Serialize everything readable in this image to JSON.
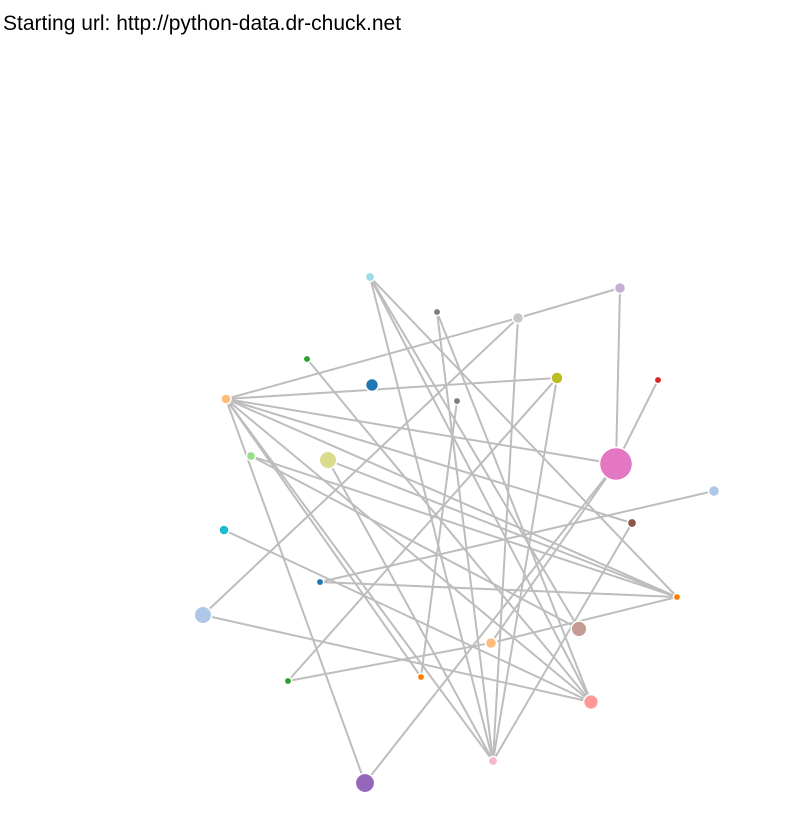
{
  "header": {
    "text": "Starting url: http://python-data.dr-chuck.net"
  },
  "graph": {
    "edge_color": "#bdbdbd",
    "node_stroke_color": "#ffffff",
    "nodes": [
      {
        "id": "n1",
        "color": "#9edae5",
        "size": 1
      },
      {
        "id": "n2",
        "color": "#c5b0d5",
        "size": 1.2
      },
      {
        "id": "n3",
        "color": "#c7c7c7",
        "size": 1.2
      },
      {
        "id": "n4",
        "color": "#7f7f7f",
        "size": 0.8
      },
      {
        "id": "n5",
        "color": "#2ca02c",
        "size": 0.8
      },
      {
        "id": "n6",
        "color": "#1f77b4",
        "size": 1.4
      },
      {
        "id": "n7",
        "color": "#bcbd22",
        "size": 1.3
      },
      {
        "id": "n8",
        "color": "#d62728",
        "size": 0.8
      },
      {
        "id": "n9",
        "color": "#7f7f7f",
        "size": 0.8
      },
      {
        "id": "n10",
        "color": "#ffbb78",
        "size": 1.1
      },
      {
        "id": "n11",
        "color": "#98df8a",
        "size": 1
      },
      {
        "id": "n12",
        "color": "#dbdb8d",
        "size": 1.9
      },
      {
        "id": "n13",
        "color": "#e377c2",
        "size": 3.6
      },
      {
        "id": "n14",
        "color": "#aec7e8",
        "size": 1.2
      },
      {
        "id": "n15",
        "color": "#8c564b",
        "size": 1
      },
      {
        "id": "n16",
        "color": "#17becf",
        "size": 1.1
      },
      {
        "id": "n17",
        "color": "#1f77b4",
        "size": 0.8
      },
      {
        "id": "n18",
        "color": "#ff7f0e",
        "size": 0.8
      },
      {
        "id": "n19",
        "color": "#aec7e8",
        "size": 1.9
      },
      {
        "id": "n20",
        "color": "#c49c94",
        "size": 1.7
      },
      {
        "id": "n21",
        "color": "#ffbb78",
        "size": 1.2
      },
      {
        "id": "n22",
        "color": "#2ca02c",
        "size": 0.8
      },
      {
        "id": "n23",
        "color": "#ff7f0e",
        "size": 0.8
      },
      {
        "id": "n24",
        "color": "#ff9896",
        "size": 1.6
      },
      {
        "id": "n25",
        "color": "#f7b6d2",
        "size": 1
      },
      {
        "id": "n26",
        "color": "#9467bd",
        "size": 2.1
      }
    ],
    "links": [
      [
        "n1",
        "n24"
      ],
      [
        "n1",
        "n25"
      ],
      [
        "n1",
        "n20"
      ],
      [
        "n1",
        "n18"
      ],
      [
        "n4",
        "n25"
      ],
      [
        "n4",
        "n24"
      ],
      [
        "n3",
        "n2"
      ],
      [
        "n3",
        "n10"
      ],
      [
        "n3",
        "n19"
      ],
      [
        "n3",
        "n25"
      ],
      [
        "n2",
        "n13"
      ],
      [
        "n5",
        "n24"
      ],
      [
        "n7",
        "n10"
      ],
      [
        "n7",
        "n25"
      ],
      [
        "n7",
        "n22"
      ],
      [
        "n8",
        "n13"
      ],
      [
        "n9",
        "n23"
      ],
      [
        "n10",
        "n13"
      ],
      [
        "n10",
        "n15"
      ],
      [
        "n10",
        "n24"
      ],
      [
        "n10",
        "n23"
      ],
      [
        "n10",
        "n26"
      ],
      [
        "n10",
        "n25"
      ],
      [
        "n10",
        "n18"
      ],
      [
        "n11",
        "n20"
      ],
      [
        "n11",
        "n18"
      ],
      [
        "n12",
        "n25"
      ],
      [
        "n12",
        "n18"
      ],
      [
        "n13",
        "n21"
      ],
      [
        "n13",
        "n26"
      ],
      [
        "n14",
        "n17"
      ],
      [
        "n15",
        "n25"
      ],
      [
        "n16",
        "n24"
      ],
      [
        "n17",
        "n18"
      ],
      [
        "n18",
        "n21"
      ],
      [
        "n19",
        "n24"
      ],
      [
        "n21",
        "n22"
      ]
    ]
  }
}
